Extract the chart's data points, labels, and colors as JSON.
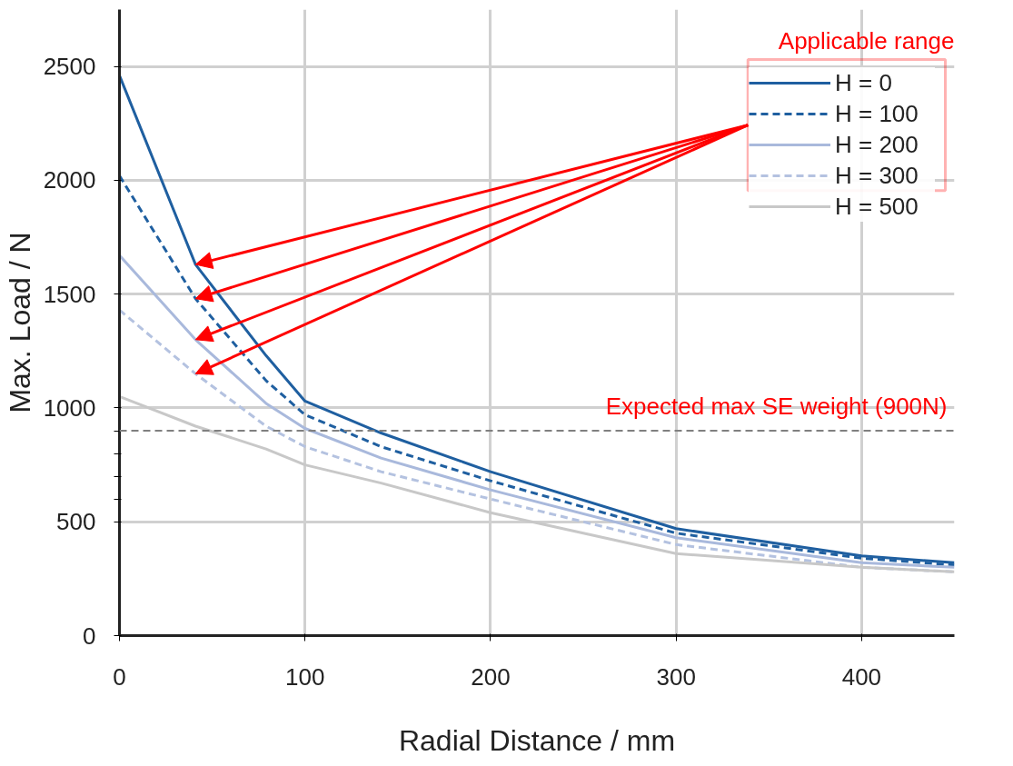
{
  "chart_data": {
    "type": "line",
    "xlabel": "Radial Distance / mm",
    "ylabel": "Max. Load / N",
    "x": [
      0,
      41,
      79,
      100,
      141,
      200,
      300,
      400,
      450
    ],
    "series": [
      {
        "name": "H = 0",
        "color": "#1f5fa0",
        "line_style": "solid",
        "values": [
          2460,
          1630,
          1230,
          1030,
          890,
          720,
          470,
          350,
          320
        ]
      },
      {
        "name": "H = 100",
        "color": "#1f5fa0",
        "line_style": "dashed",
        "values": [
          2020,
          1480,
          1120,
          970,
          830,
          680,
          450,
          340,
          310
        ]
      },
      {
        "name": "H = 200",
        "color": "#a9b9dc",
        "line_style": "solid",
        "values": [
          1670,
          1300,
          1020,
          910,
          780,
          640,
          430,
          320,
          300
        ]
      },
      {
        "name": "H = 300",
        "color": "#b4c2e0",
        "line_style": "dashed",
        "values": [
          1430,
          1150,
          920,
          830,
          720,
          600,
          400,
          300,
          280
        ]
      },
      {
        "name": "H = 500",
        "color": "#c8c8c8",
        "line_style": "solid",
        "values": [
          1050,
          920,
          820,
          750,
          670,
          540,
          360,
          300,
          280
        ]
      }
    ],
    "xlim": [
      0,
      450
    ],
    "ylim": [
      0,
      2750
    ],
    "xticks": [
      0,
      100,
      200,
      300,
      400
    ],
    "yticks": [
      0,
      500,
      1000,
      1500,
      2000,
      2500,
      {
        "value": 600,
        "label": null
      },
      {
        "value": 700,
        "label": null
      },
      {
        "value": 800,
        "label": null
      },
      {
        "value": 900,
        "label": null
      }
    ],
    "grid": true,
    "legend": "top right",
    "marker": "none",
    "annotations": [
      "Applicable range"
    ],
    "ref_lines": [
      {
        "axis": "y",
        "value": 900,
        "label": "Expected max SE weight (900N)",
        "color": "#808080",
        "line_style": "dashed"
      }
    ]
  }
}
